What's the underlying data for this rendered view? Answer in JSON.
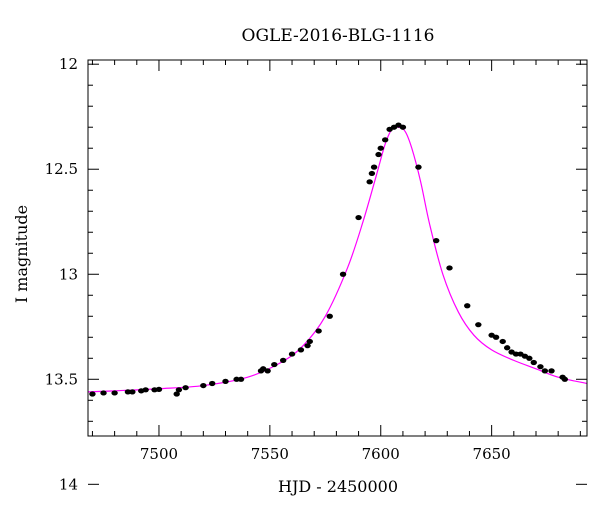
{
  "chart_data": {
    "type": "scatter",
    "title": "OGLE-2016-BLG-1116",
    "xlabel": "HJD - 2450000",
    "ylabel": "I magnitude",
    "xlim": [
      7468,
      7693
    ],
    "ylim": [
      13.77,
      11.98
    ],
    "y_inverted": true,
    "grid": false,
    "x_ticks": [
      7500,
      7550,
      7600,
      7650
    ],
    "x_tick_labels": [
      "7500",
      "7550",
      "7600",
      "7650"
    ],
    "y_ticks": [
      12,
      12.5,
      13,
      13.5,
      14
    ],
    "y_tick_labels": [
      "12",
      "12.5",
      "13",
      "13.5",
      "14"
    ],
    "colors": {
      "model": "#ff00ff",
      "points": "#000000",
      "axes": "#000000"
    },
    "model": {
      "x": [
        7468,
        7480,
        7500,
        7520,
        7540,
        7555,
        7565,
        7575,
        7585,
        7592,
        7598,
        7602,
        7605,
        7608,
        7611,
        7614,
        7618,
        7622,
        7628,
        7635,
        7642,
        7650,
        7660,
        7670,
        7680,
        7693
      ],
      "y": [
        13.56,
        13.555,
        13.545,
        13.53,
        13.49,
        13.42,
        13.34,
        13.2,
        12.97,
        12.75,
        12.53,
        12.38,
        12.31,
        12.3,
        12.32,
        12.4,
        12.56,
        12.76,
        13.0,
        13.18,
        13.29,
        13.36,
        13.41,
        13.45,
        13.49,
        13.52
      ]
    },
    "observations": {
      "x": [
        7470,
        7475,
        7480,
        7486,
        7488,
        7492,
        7494,
        7498,
        7500,
        7508,
        7509,
        7512,
        7520,
        7524,
        7530,
        7535,
        7537,
        7546,
        7547,
        7549,
        7552,
        7556,
        7560,
        7564,
        7567,
        7568,
        7572,
        7577,
        7583,
        7590,
        7595,
        7596,
        7597,
        7599,
        7600,
        7602,
        7604,
        7606,
        7608,
        7610,
        7617,
        7625,
        7631,
        7639,
        7644,
        7650,
        7652,
        7655,
        7657,
        7659,
        7661,
        7663,
        7665,
        7667,
        7669,
        7672,
        7674,
        7677,
        7682,
        7683
      ],
      "y": [
        13.57,
        13.565,
        13.565,
        13.56,
        13.56,
        13.555,
        13.55,
        13.55,
        13.548,
        13.57,
        13.55,
        13.54,
        13.53,
        13.52,
        13.51,
        13.5,
        13.5,
        13.46,
        13.45,
        13.46,
        13.43,
        13.41,
        13.38,
        13.36,
        13.34,
        13.32,
        13.27,
        13.2,
        13.0,
        12.73,
        12.56,
        12.52,
        12.49,
        12.43,
        12.4,
        12.36,
        12.31,
        12.3,
        12.29,
        12.3,
        12.49,
        12.84,
        12.97,
        13.15,
        13.24,
        13.29,
        13.3,
        13.32,
        13.35,
        13.37,
        13.38,
        13.38,
        13.39,
        13.4,
        13.42,
        13.44,
        13.46,
        13.46,
        13.49,
        13.5
      ]
    }
  }
}
